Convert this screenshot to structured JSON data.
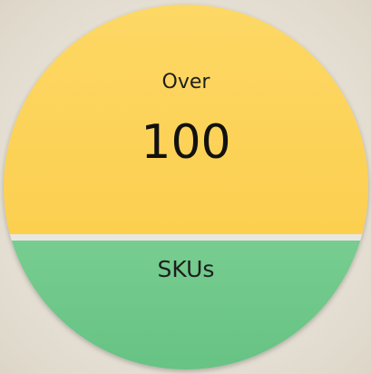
{
  "top_label": "Over",
  "number": 100,
  "bottom_label": "SKUs"
}
